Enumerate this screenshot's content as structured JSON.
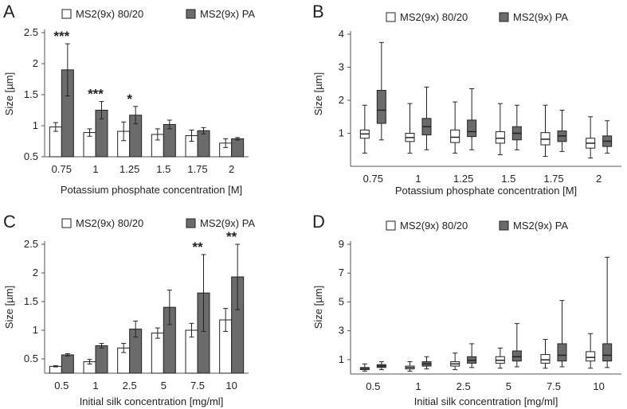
{
  "colors": {
    "series_a": "#ffffff",
    "series_b": "#6b6b6b",
    "stroke": "#222222",
    "axis": "#555555"
  },
  "chart_data": [
    {
      "panel": "A",
      "type": "bar",
      "categories": [
        "0.75",
        "1",
        "1.25",
        "1.5",
        "1.75",
        "2"
      ],
      "xlabel": "Potassium phosphate concentration [M]",
      "ylabel": "Size [µm]",
      "ylim": [
        0.5,
        2.5
      ],
      "yticks": [
        0.5,
        1,
        1.5,
        2,
        2.5
      ],
      "legend": [
        "MS2(9x) 80/20",
        "MS2(9x) PA"
      ],
      "series": [
        {
          "name": "MS2(9x) 80/20",
          "values": [
            0.98,
            0.89,
            0.91,
            0.86,
            0.84,
            0.72
          ],
          "errors": [
            0.07,
            0.06,
            0.15,
            0.09,
            0.09,
            0.07
          ]
        },
        {
          "name": "MS2(9x) PA",
          "values": [
            1.9,
            1.25,
            1.17,
            1.02,
            0.92,
            0.79
          ],
          "errors": [
            0.42,
            0.14,
            0.14,
            0.07,
            0.05,
            0.02
          ]
        }
      ],
      "annotations": [
        "***",
        "***",
        "*",
        "",
        "",
        ""
      ]
    },
    {
      "panel": "B",
      "type": "box",
      "categories": [
        "0.75",
        "1",
        "1.25",
        "1.5",
        "1.75",
        "2"
      ],
      "xlabel": "Potassium phosphate concentration [M]",
      "ylabel": "Size [µm]",
      "ylim": [
        0,
        4
      ],
      "yticks": [
        1,
        2,
        3,
        4
      ],
      "legend": [
        "MS2(9x) 80/20",
        "MS2(9x) PA"
      ],
      "series": [
        {
          "name": "MS2(9x) 80/20",
          "boxes": [
            {
              "min": 0.4,
              "q1": 0.85,
              "median": 0.98,
              "q3": 1.1,
              "max": 1.85
            },
            {
              "min": 0.4,
              "q1": 0.75,
              "median": 0.87,
              "q3": 1.0,
              "max": 1.9
            },
            {
              "min": 0.4,
              "q1": 0.72,
              "median": 0.88,
              "q3": 1.1,
              "max": 1.95
            },
            {
              "min": 0.35,
              "q1": 0.7,
              "median": 0.85,
              "q3": 1.05,
              "max": 1.9
            },
            {
              "min": 0.3,
              "q1": 0.65,
              "median": 0.82,
              "q3": 1.02,
              "max": 1.85
            },
            {
              "min": 0.25,
              "q1": 0.55,
              "median": 0.7,
              "q3": 0.85,
              "max": 1.5
            }
          ]
        },
        {
          "name": "MS2(9x) PA",
          "boxes": [
            {
              "min": 0.8,
              "q1": 1.3,
              "median": 1.7,
              "q3": 2.3,
              "max": 3.75
            },
            {
              "min": 0.5,
              "q1": 0.95,
              "median": 1.2,
              "q3": 1.45,
              "max": 2.4
            },
            {
              "min": 0.5,
              "q1": 0.9,
              "median": 1.05,
              "q3": 1.4,
              "max": 2.35
            },
            {
              "min": 0.5,
              "q1": 0.8,
              "median": 1.0,
              "q3": 1.2,
              "max": 1.85
            },
            {
              "min": 0.45,
              "q1": 0.75,
              "median": 0.92,
              "q3": 1.07,
              "max": 1.7
            },
            {
              "min": 0.4,
              "q1": 0.6,
              "median": 0.76,
              "q3": 0.92,
              "max": 1.38
            }
          ]
        }
      ]
    },
    {
      "panel": "C",
      "type": "bar",
      "categories": [
        "0.5",
        "1",
        "2.5",
        "5",
        "7.5",
        "10"
      ],
      "xlabel": "Initial silk concentration [mg/ml]",
      "ylabel": "Size [µm]",
      "ylim": [
        0.25,
        2.5
      ],
      "yticks": [
        0.5,
        1,
        1.5,
        2,
        2.5
      ],
      "legend": [
        "MS2(9x) 80/20",
        "MS2(9x) PA"
      ],
      "series": [
        {
          "name": "MS2(9x) 80/20",
          "values": [
            0.37,
            0.45,
            0.69,
            0.95,
            1.0,
            1.18
          ],
          "errors": [
            0.01,
            0.04,
            0.08,
            0.09,
            0.12,
            0.2
          ]
        },
        {
          "name": "MS2(9x) PA",
          "values": [
            0.57,
            0.73,
            1.02,
            1.4,
            1.65,
            1.93
          ],
          "errors": [
            0.02,
            0.04,
            0.14,
            0.3,
            0.67,
            0.57
          ]
        }
      ],
      "annotations": [
        "",
        "",
        "",
        "",
        "**",
        "**"
      ]
    },
    {
      "panel": "D",
      "type": "box",
      "categories": [
        "0.5",
        "1",
        "2.5",
        "5",
        "7.5",
        "10"
      ],
      "xlabel": "Initial silk concentration [mg/ml]",
      "ylabel": "Size [µm]",
      "ylim": [
        0,
        9
      ],
      "yticks": [
        1,
        3,
        5,
        7,
        9
      ],
      "legend": [
        "MS2(9x) 80/20",
        "MS2(9x) PA"
      ],
      "series": [
        {
          "name": "MS2(9x) 80/20",
          "boxes": [
            {
              "min": 0.2,
              "q1": 0.3,
              "median": 0.38,
              "q3": 0.45,
              "max": 0.7
            },
            {
              "min": 0.2,
              "q1": 0.35,
              "median": 0.45,
              "q3": 0.55,
              "max": 0.85
            },
            {
              "min": 0.3,
              "q1": 0.55,
              "median": 0.7,
              "q3": 0.85,
              "max": 1.45
            },
            {
              "min": 0.4,
              "q1": 0.75,
              "median": 0.95,
              "q3": 1.2,
              "max": 1.8
            },
            {
              "min": 0.4,
              "q1": 0.75,
              "median": 0.98,
              "q3": 1.35,
              "max": 2.4
            },
            {
              "min": 0.4,
              "q1": 0.9,
              "median": 1.15,
              "q3": 1.55,
              "max": 2.8
            }
          ]
        },
        {
          "name": "MS2(9x) PA",
          "boxes": [
            {
              "min": 0.3,
              "q1": 0.45,
              "median": 0.55,
              "q3": 0.65,
              "max": 0.85
            },
            {
              "min": 0.35,
              "q1": 0.55,
              "median": 0.7,
              "q3": 0.85,
              "max": 1.2
            },
            {
              "min": 0.45,
              "q1": 0.75,
              "median": 0.95,
              "q3": 1.2,
              "max": 2.1
            },
            {
              "min": 0.5,
              "q1": 0.9,
              "median": 1.2,
              "q3": 1.6,
              "max": 3.5
            },
            {
              "min": 0.5,
              "q1": 0.9,
              "median": 1.3,
              "q3": 2.1,
              "max": 5.1
            },
            {
              "min": 0.45,
              "q1": 0.9,
              "median": 1.3,
              "q3": 2.1,
              "max": 8.1
            }
          ]
        }
      ]
    }
  ]
}
